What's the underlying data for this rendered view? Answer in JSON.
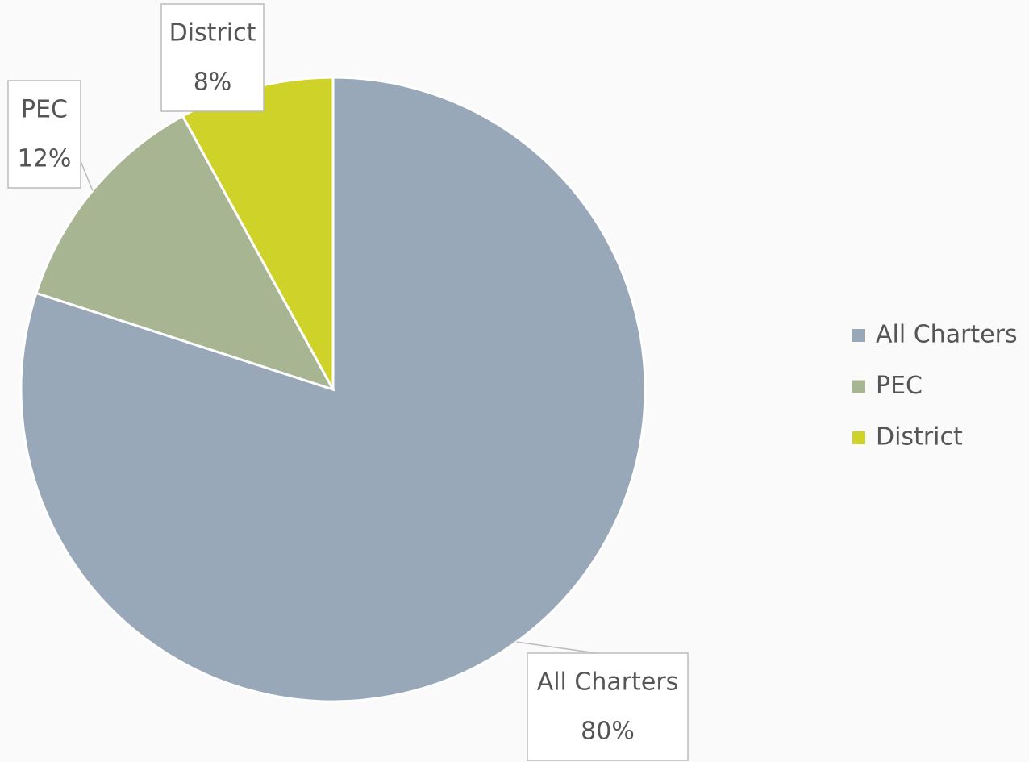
{
  "chart_data": {
    "type": "pie",
    "categories": [
      "All Charters",
      "PEC",
      "District"
    ],
    "values": [
      80,
      12,
      8
    ],
    "value_labels": [
      "80%",
      "12%",
      "8%"
    ],
    "colors": [
      "#99a8b8",
      "#a7b592",
      "#cfd228"
    ],
    "legend": "right"
  }
}
